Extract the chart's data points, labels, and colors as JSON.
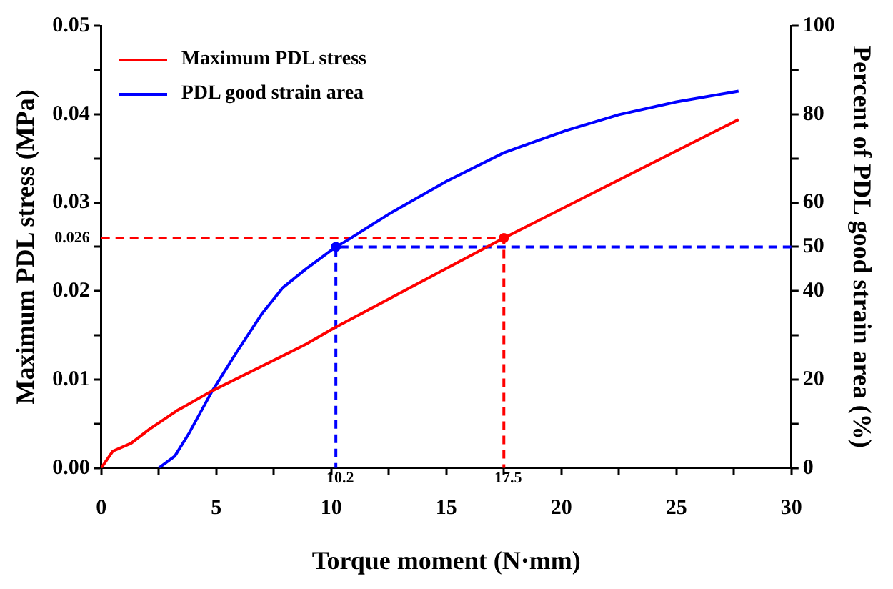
{
  "chart_data": {
    "type": "line",
    "xlabel": "Torque moment (N·mm)",
    "ylabel": "Maximum PDL stress (MPa)",
    "y2label": "Percent of PDL good strain area (%)",
    "xlim": [
      0,
      30
    ],
    "xticks": [
      0,
      {
        "value": 2.5,
        "label": null
      },
      5,
      {
        "value": 7.5,
        "label": null
      },
      10,
      {
        "value": 12.5,
        "label": null
      },
      15,
      {
        "value": 17.5,
        "label": null
      },
      20,
      {
        "value": 22.5,
        "label": null
      },
      25,
      {
        "value": 27.5,
        "label": null
      },
      30
    ],
    "ylim": [
      0,
      0.05
    ],
    "yticks": [
      {
        "value": 0,
        "label": "0.00"
      },
      {
        "value": 0.005,
        "label": null
      },
      0.01,
      {
        "value": 0.015,
        "label": null
      },
      0.02,
      {
        "value": 0.025,
        "label": null
      },
      0.03,
      {
        "value": 0.035,
        "label": null
      },
      0.04,
      {
        "value": 0.045,
        "label": null
      },
      0.05
    ],
    "y2lim": [
      0,
      100
    ],
    "y2ticks": [
      0,
      {
        "value": 10,
        "label": null
      },
      20,
      {
        "value": 30,
        "label": null
      },
      40,
      50,
      60,
      {
        "value": 70,
        "label": null
      },
      80,
      {
        "value": 90,
        "label": null
      },
      100
    ],
    "grid": false,
    "legend": "top left",
    "marker": "none",
    "line_style": "solid",
    "series": [
      {
        "name": "Maximum PDL stress",
        "color": "#ff0000",
        "x": [
          0,
          0.5,
          1.3,
          2.1,
          3.3,
          4.8,
          7.9,
          8.9,
          10.1,
          17.5,
          27.7
        ],
        "values": [
          0,
          0.0019,
          0.0028,
          0.0044,
          0.0065,
          0.0087,
          0.0127,
          0.014,
          0.0158,
          0.026,
          0.0394
        ]
      },
      {
        "name": "PDL good strain area",
        "color": "#0000ff",
        "axis": "y2",
        "x": [
          2.5,
          3.2,
          3.8,
          4.8,
          5.9,
          7.0,
          7.9,
          8.9,
          10.2,
          10.7,
          12.5,
          15.0,
          17.5,
          20.2,
          22.5,
          25.0,
          27.7
        ],
        "values": [
          0,
          2.7,
          7.7,
          17.2,
          26.3,
          35,
          40.8,
          45,
          50,
          51.5,
          57.4,
          64.8,
          71.3,
          76.3,
          79.9,
          82.8,
          85.2
        ]
      },
      {
        "type": "line",
        "line_style": "dashed",
        "color": "#ff0000",
        "x": [
          0,
          17.5,
          17.5
        ],
        "values": [
          0.026,
          0.026,
          0
        ]
      },
      {
        "type": "line",
        "line_style": "dashed",
        "color": "#0000ff",
        "axis": "y2",
        "x": [
          30,
          10.2,
          10.2
        ],
        "values": [
          50,
          50,
          0
        ]
      },
      {
        "type": "scatter",
        "marker": "circle",
        "color": "#ff0000",
        "x": [
          17.5
        ],
        "values": [
          0.026
        ]
      },
      {
        "type": "scatter",
        "marker": "circle",
        "color": "#0000ff",
        "axis": "y2",
        "x": [
          10.2
        ],
        "values": [
          50
        ]
      }
    ],
    "annotations": [
      {
        "text": "0.026",
        "x": 0,
        "y": 0.026
      },
      {
        "text": "10.2",
        "x": 10.2,
        "y": 0
      },
      {
        "text": "17.5",
        "x": 17.5,
        "y": 0
      }
    ]
  }
}
